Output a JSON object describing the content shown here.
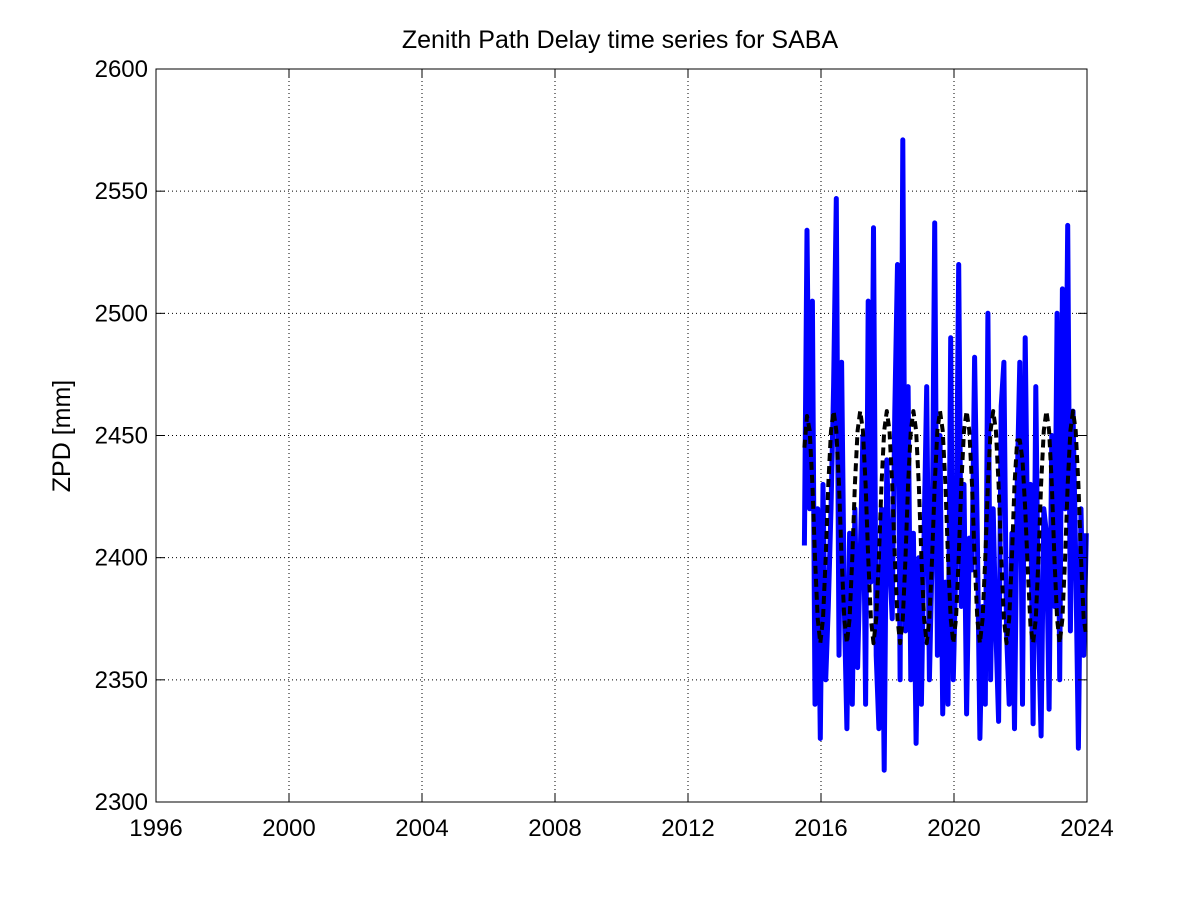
{
  "chart_data": {
    "type": "line",
    "title": "Zenith Path Delay time series for SABA",
    "xlabel": "",
    "ylabel": "ZPD [mm]",
    "xlim": [
      1996,
      2024
    ],
    "ylim": [
      2300,
      2600
    ],
    "xticks": [
      1996,
      2000,
      2004,
      2008,
      2012,
      2016,
      2020,
      2024
    ],
    "yticks": [
      2300,
      2350,
      2400,
      2450,
      2500,
      2550,
      2600
    ],
    "xtick_labels": [
      "1996",
      "2000",
      "2004",
      "2008",
      "2012",
      "2016",
      "2020",
      "2024"
    ],
    "ytick_labels": [
      "2300",
      "2350",
      "2400",
      "2450",
      "2500",
      "2550",
      "2600"
    ],
    "grid": true,
    "series": [
      {
        "color": "#0000ff",
        "style": "solid",
        "x": [
          2015.5,
          2015.58,
          2015.66,
          2015.74,
          2015.82,
          2015.9,
          2015.98,
          2016.06,
          2016.14,
          2016.22,
          2016.3,
          2016.38,
          2016.46,
          2016.54,
          2016.62,
          2016.7,
          2016.78,
          2016.86,
          2016.94,
          2017.02,
          2017.1,
          2017.18,
          2017.26,
          2017.34,
          2017.42,
          2017.5,
          2017.58,
          2017.66,
          2017.74,
          2017.82,
          2017.9,
          2017.98,
          2018.06,
          2018.14,
          2018.22,
          2018.3,
          2018.38,
          2018.46,
          2018.54,
          2018.62,
          2018.7,
          2018.78,
          2018.86,
          2018.94,
          2019.02,
          2019.1,
          2019.18,
          2019.26,
          2019.34,
          2019.42,
          2019.5,
          2019.58,
          2019.66,
          2019.74,
          2019.82,
          2019.9,
          2019.98,
          2020.06,
          2020.14,
          2020.22,
          2020.3,
          2020.38,
          2020.46,
          2020.54,
          2020.62,
          2020.7,
          2020.78,
          2020.86,
          2020.94,
          2021.02,
          2021.1,
          2021.18,
          2021.26,
          2021.34,
          2021.42,
          2021.5,
          2021.58,
          2021.66,
          2021.74,
          2021.82,
          2021.9,
          2021.98,
          2022.06,
          2022.14,
          2022.22,
          2022.3,
          2022.38,
          2022.46,
          2022.54,
          2022.62,
          2022.7,
          2022.78,
          2022.86,
          2022.94,
          2023.02,
          2023.1,
          2023.18,
          2023.26,
          2023.34,
          2023.42,
          2023.5,
          2023.58,
          2023.66,
          2023.74,
          2023.82,
          2023.9,
          2023.98
        ],
        "y": [
          2405,
          2534,
          2420,
          2505,
          2340,
          2420,
          2326,
          2430,
          2350,
          2380,
          2420,
          2470,
          2547,
          2360,
          2480,
          2380,
          2330,
          2410,
          2340,
          2420,
          2355,
          2400,
          2450,
          2340,
          2505,
          2390,
          2535,
          2360,
          2330,
          2420,
          2313,
          2440,
          2400,
          2375,
          2460,
          2520,
          2350,
          2571,
          2370,
          2470,
          2350,
          2410,
          2324,
          2400,
          2340,
          2410,
          2470,
          2350,
          2400,
          2537,
          2360,
          2450,
          2336,
          2390,
          2340,
          2490,
          2350,
          2400,
          2520,
          2380,
          2430,
          2336,
          2408,
          2395,
          2482,
          2410,
          2326,
          2380,
          2340,
          2500,
          2350,
          2420,
          2370,
          2333,
          2462,
          2480,
          2370,
          2340,
          2410,
          2330,
          2430,
          2480,
          2340,
          2490,
          2400,
          2430,
          2332,
          2470,
          2370,
          2327,
          2420,
          2410,
          2338,
          2450,
          2380,
          2500,
          2350,
          2510,
          2420,
          2536,
          2370,
          2460,
          2400,
          2322,
          2420,
          2360,
          2410
        ]
      },
      {
        "color": "#000000",
        "style": "dashed",
        "x": [
          2015.5,
          2015.58,
          2015.66,
          2015.74,
          2015.82,
          2015.9,
          2015.98,
          2016.06,
          2016.14,
          2016.22,
          2016.3,
          2016.38,
          2016.46,
          2016.54,
          2016.62,
          2016.7,
          2016.78,
          2016.86,
          2016.94,
          2017.02,
          2017.1,
          2017.18,
          2017.26,
          2017.34,
          2017.42,
          2017.5,
          2017.58,
          2017.66,
          2017.74,
          2017.82,
          2017.9,
          2017.98,
          2018.06,
          2018.14,
          2018.22,
          2018.3,
          2018.38,
          2018.46,
          2018.54,
          2018.62,
          2018.7,
          2018.78,
          2018.86,
          2018.94,
          2019.02,
          2019.1,
          2019.18,
          2019.26,
          2019.34,
          2019.42,
          2019.5,
          2019.58,
          2019.66,
          2019.74,
          2019.82,
          2019.9,
          2019.98,
          2020.06,
          2020.14,
          2020.22,
          2020.3,
          2020.38,
          2020.46,
          2020.54,
          2020.62,
          2020.7,
          2020.78,
          2020.86,
          2020.94,
          2021.02,
          2021.1,
          2021.18,
          2021.26,
          2021.34,
          2021.42,
          2021.5,
          2021.58,
          2021.66,
          2021.74,
          2021.82,
          2021.9,
          2021.98,
          2022.06,
          2022.14,
          2022.22,
          2022.3,
          2022.38,
          2022.46,
          2022.54,
          2022.62,
          2022.7,
          2022.78,
          2022.86,
          2022.94,
          2023.02,
          2023.1,
          2023.18,
          2023.26,
          2023.34,
          2023.42,
          2023.5,
          2023.58,
          2023.66,
          2023.74,
          2023.82,
          2023.9,
          2023.98
        ],
        "y": [
          2445,
          2458,
          2452,
          2430,
          2400,
          2375,
          2365,
          2375,
          2400,
          2430,
          2452,
          2460,
          2452,
          2430,
          2400,
          2375,
          2365,
          2375,
          2400,
          2430,
          2452,
          2460,
          2452,
          2430,
          2400,
          2375,
          2365,
          2375,
          2400,
          2430,
          2452,
          2460,
          2452,
          2430,
          2400,
          2375,
          2365,
          2375,
          2400,
          2430,
          2452,
          2460,
          2452,
          2430,
          2400,
          2375,
          2365,
          2375,
          2400,
          2430,
          2452,
          2460,
          2452,
          2430,
          2400,
          2375,
          2365,
          2375,
          2400,
          2430,
          2452,
          2460,
          2452,
          2430,
          2400,
          2375,
          2365,
          2375,
          2400,
          2430,
          2452,
          2460,
          2452,
          2430,
          2400,
          2375,
          2365,
          2375,
          2400,
          2430,
          2448,
          2448,
          2440,
          2420,
          2395,
          2372,
          2365,
          2375,
          2400,
          2430,
          2452,
          2460,
          2452,
          2430,
          2400,
          2375,
          2365,
          2375,
          2400,
          2430,
          2452,
          2460,
          2452,
          2430,
          2400,
          2375,
          2368
        ]
      }
    ]
  }
}
